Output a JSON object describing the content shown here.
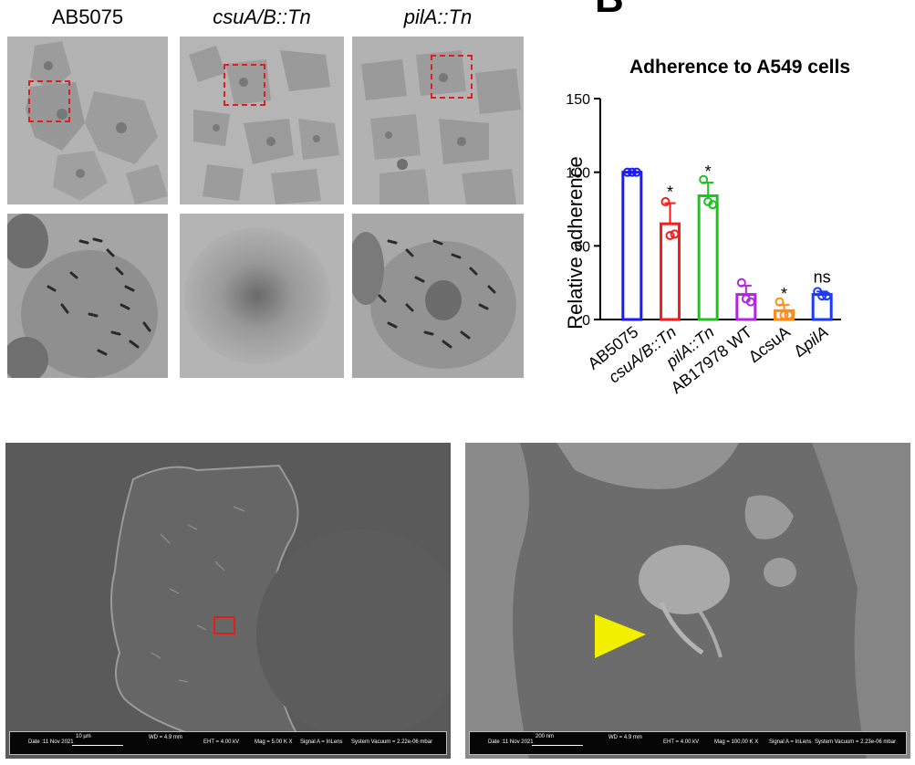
{
  "panel_top_letter": "B",
  "strains": [
    {
      "label": "AB5075",
      "italic": false
    },
    {
      "label": "csuA/B::Tn",
      "italic": true
    },
    {
      "label": "pilA::Tn",
      "italic": true
    }
  ],
  "chart_data": {
    "type": "bar",
    "title": "Adherence to A549 cells",
    "ylabel": "Relative adherence",
    "xlabel": "",
    "ylim": [
      0,
      150
    ],
    "yticks": [
      0,
      50,
      100,
      150
    ],
    "categories": [
      "AB5075",
      "csuA/B::Tn",
      "pilA::Tn",
      "AB17978 WT",
      "ΔcsuA",
      "ΔpilA"
    ],
    "category_parts": [
      [
        {
          "t": "AB5075",
          "i": false
        }
      ],
      [
        {
          "t": "csuA/B::Tn",
          "i": true
        }
      ],
      [
        {
          "t": "pilA::Tn",
          "i": true
        }
      ],
      [
        {
          "t": "AB17978 WT",
          "i": false
        }
      ],
      [
        {
          "t": "Δ",
          "i": false
        },
        {
          "t": "csuA",
          "i": false
        }
      ],
      [
        {
          "t": "Δ",
          "i": false
        },
        {
          "t": "pilA",
          "i": true
        }
      ]
    ],
    "values": [
      100,
      65,
      84,
      17,
      6,
      17
    ],
    "errors": [
      0,
      14,
      9,
      6,
      4,
      2
    ],
    "points": [
      [
        100,
        100,
        100
      ],
      [
        80,
        57,
        58
      ],
      [
        95,
        80,
        78
      ],
      [
        25,
        14,
        12
      ],
      [
        12,
        3,
        3
      ],
      [
        19,
        16,
        16
      ]
    ],
    "colors": [
      "#1a1aff",
      "#ff1a1a",
      "#1ec41e",
      "#b326e0",
      "#ff8c1a",
      "#1a3aff"
    ],
    "annotations": [
      "",
      "*",
      "*",
      "",
      "*",
      "ns"
    ],
    "grid": false,
    "legend": "none"
  },
  "sem_left": {
    "date": "Date :11 Nov 2021",
    "scale": "10 µm",
    "wd": "WD = 4.9 mm",
    "eht": "EHT = 4.00 kV",
    "mag": "Mag = 5.00 K X",
    "signal": "Signal A = InLens",
    "vacuum": "System Vacuum = 2.22e-06 mbar"
  },
  "sem_right": {
    "date": "Date :11 Nov 2021",
    "scale": "200 nm",
    "wd": "WD = 4.9 mm",
    "eht": "EHT = 4.00 kV",
    "mag": "Mag = 100.00 K X",
    "signal": "Signal A = InLens",
    "vacuum": "System Vacuum = 2.23e-06 mbar"
  }
}
